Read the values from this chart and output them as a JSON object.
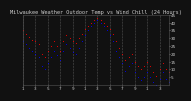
{
  "title": "Milwaukee Weather Outdoor Temp vs Wind Chill (24 Hours)",
  "title_fontsize": 3.8,
  "background_color": "#111111",
  "plot_bg_color": "#111111",
  "temp_color": "#ff0000",
  "windchill_color": "#0000ff",
  "grid_color": "#555555",
  "text_color": "#cccccc",
  "temp_x": [
    0,
    1,
    2,
    3,
    4,
    5,
    6,
    7,
    8,
    9,
    10,
    11,
    12,
    13,
    14,
    15,
    16,
    17,
    18,
    19,
    20,
    21,
    22,
    23,
    24,
    25,
    26,
    27,
    28,
    29,
    30,
    31,
    32,
    33,
    34,
    35,
    36,
    37,
    38,
    39,
    40,
    41,
    42,
    43,
    44,
    45,
    46,
    47
  ],
  "temp_y": [
    35,
    33,
    31,
    29,
    28,
    26,
    20,
    18,
    22,
    25,
    28,
    25,
    22,
    28,
    32,
    30,
    28,
    27,
    30,
    33,
    36,
    38,
    40,
    42,
    43,
    42,
    40,
    38,
    36,
    33,
    28,
    24,
    20,
    16,
    18,
    20,
    15,
    12,
    10,
    12,
    15,
    12,
    8,
    6,
    10,
    14,
    10,
    8
  ],
  "windchill_x": [
    0,
    1,
    2,
    3,
    4,
    5,
    6,
    7,
    8,
    9,
    10,
    11,
    12,
    13,
    14,
    15,
    16,
    17,
    18,
    19,
    20,
    21,
    22,
    23,
    24,
    25,
    26,
    27,
    28,
    29,
    30,
    31,
    32,
    33,
    34,
    35,
    36,
    37,
    38,
    39,
    40,
    41,
    42,
    43,
    44,
    45,
    46,
    47
  ],
  "windchill_y": [
    28,
    26,
    24,
    22,
    20,
    18,
    12,
    10,
    14,
    18,
    22,
    19,
    16,
    22,
    26,
    24,
    21,
    20,
    24,
    28,
    32,
    35,
    38,
    40,
    42,
    40,
    38,
    35,
    32,
    28,
    22,
    18,
    14,
    9,
    12,
    14,
    8,
    5,
    3,
    5,
    8,
    5,
    2,
    0,
    4,
    8,
    4,
    2
  ],
  "ylim": [
    0,
    45
  ],
  "xlim": [
    0,
    47
  ],
  "ytick_vals": [
    5,
    10,
    15,
    20,
    25,
    30,
    35,
    40,
    45
  ],
  "ytick_labels": [
    "5",
    "10",
    "15",
    "20",
    "25",
    "30",
    "35",
    "40",
    "45"
  ],
  "xtick_positions": [
    0,
    4,
    8,
    12,
    16,
    20,
    24,
    28,
    32,
    36,
    40,
    44
  ],
  "xtick_labels": [
    "1",
    "3",
    "5",
    "7",
    "9",
    "1",
    "3",
    "5",
    "7",
    "9",
    "1",
    "3"
  ],
  "vgrid_positions": [
    0,
    4,
    8,
    12,
    16,
    20,
    24,
    28,
    32,
    36,
    40,
    44
  ],
  "marker_size": 1.5,
  "tick_fontsize": 3.0,
  "line_style": "None",
  "marker_style": "."
}
